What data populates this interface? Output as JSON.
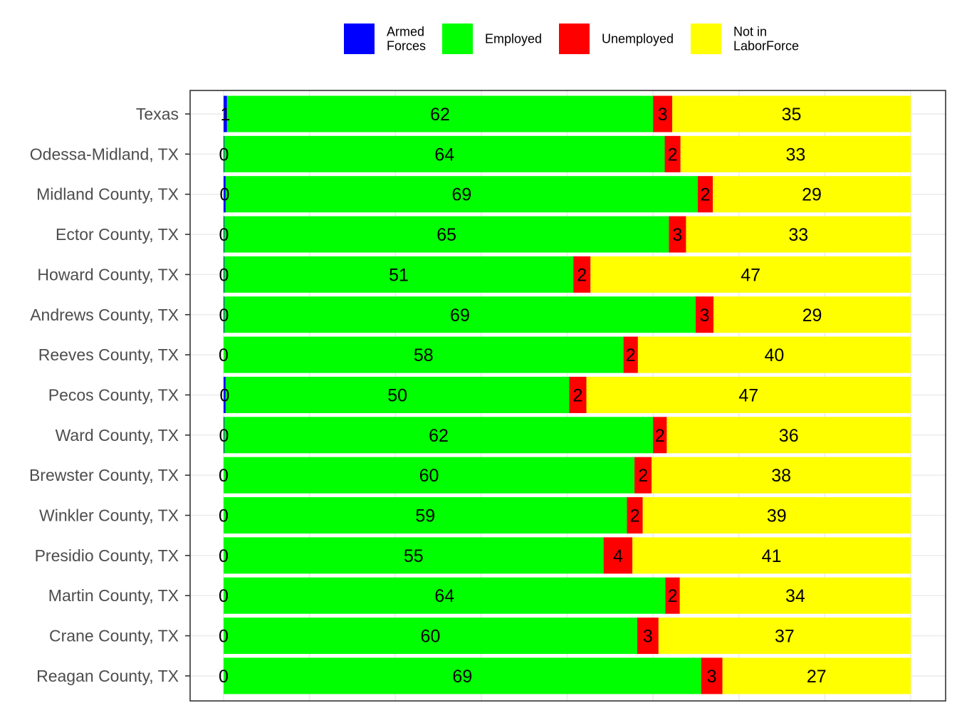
{
  "chart_data": {
    "type": "bar",
    "orientation": "horizontal",
    "stacked": true,
    "title": "",
    "xlabel": "",
    "ylabel": "",
    "xlim": [
      0,
      100
    ],
    "grid": true,
    "legend_position": "top",
    "categories": [
      "Texas",
      "Odessa-Midland, TX",
      "Midland County, TX",
      "Ector County, TX",
      "Howard County, TX",
      "Andrews County, TX",
      "Reeves County, TX",
      "Pecos County, TX",
      "Ward County, TX",
      "Brewster County, TX",
      "Winkler County, TX",
      "Presidio County, TX",
      "Martin County, TX",
      "Crane County, TX",
      "Reagan County, TX"
    ],
    "series": [
      {
        "name": "Armed Forces",
        "legend_lines": [
          "Armed",
          "Forces"
        ],
        "color": "#0000ff",
        "values": [
          0.5,
          0.1,
          0.3,
          0.1,
          0.1,
          0.1,
          0.0,
          0.3,
          0.1,
          0.0,
          0.0,
          0.0,
          0.0,
          0.0,
          0.0
        ],
        "labels": [
          "1",
          "0",
          "0",
          "0",
          "0",
          "0",
          "0",
          "0",
          "0",
          "0",
          "0",
          "0",
          "0",
          "0",
          "0"
        ]
      },
      {
        "name": "Employed",
        "legend_lines": [
          "Employed"
        ],
        "color": "#00ff00",
        "values": [
          62.0,
          64.1,
          68.7,
          64.7,
          50.8,
          68.6,
          58.2,
          50.0,
          62.4,
          59.8,
          58.7,
          55.3,
          64.3,
          60.2,
          69.5
        ],
        "labels": [
          "62",
          "64",
          "69",
          "65",
          "51",
          "69",
          "58",
          "50",
          "62",
          "60",
          "59",
          "55",
          "64",
          "60",
          "69"
        ]
      },
      {
        "name": "Unemployed",
        "legend_lines": [
          "Unemployed"
        ],
        "color": "#ff0000",
        "values": [
          2.8,
          2.3,
          2.2,
          2.5,
          2.5,
          2.6,
          2.1,
          2.5,
          2.0,
          2.5,
          2.3,
          4.2,
          2.1,
          3.1,
          3.1
        ],
        "labels": [
          "3",
          "2",
          "2",
          "3",
          "2",
          "3",
          "2",
          "2",
          "2",
          "2",
          "2",
          "4",
          "2",
          "3",
          "3"
        ]
      },
      {
        "name": "Not in LaborForce",
        "legend_lines": [
          "Not in",
          "LaborForce"
        ],
        "color": "#ffff00",
        "values": [
          34.7,
          33.5,
          28.8,
          32.7,
          46.6,
          28.7,
          39.7,
          47.2,
          35.5,
          37.7,
          39.0,
          40.5,
          33.6,
          36.7,
          27.4
        ],
        "labels": [
          "35",
          "33",
          "29",
          "33",
          "47",
          "29",
          "40",
          "47",
          "36",
          "38",
          "39",
          "41",
          "34",
          "37",
          "27"
        ]
      }
    ]
  }
}
